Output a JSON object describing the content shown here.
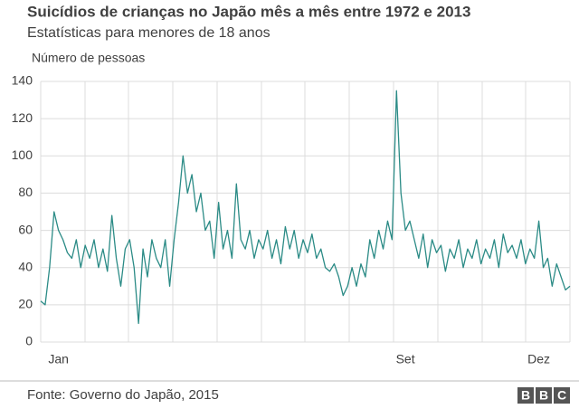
{
  "chart_data": {
    "type": "line",
    "title": "Suicídios de crianças no Japão mês a mês entre 1972 e 2013",
    "subtitle": "Estatísticas para menores de 18 anos",
    "y_label": "Número de pessoas",
    "source": "Fonte: Governo do Japão, 2015",
    "logo": [
      "B",
      "B",
      "C"
    ],
    "categories": [
      null,
      null,
      null,
      null,
      "Jan",
      null,
      null,
      null,
      null,
      null,
      null,
      null,
      null,
      null,
      null,
      null,
      null,
      null,
      null,
      null,
      null,
      null,
      null,
      null,
      null,
      null,
      null,
      null,
      null,
      null,
      null,
      null,
      null,
      null,
      null,
      null,
      null,
      null,
      null,
      null,
      null,
      null,
      null,
      null,
      null,
      null,
      null,
      null,
      null,
      null,
      null,
      null,
      null,
      null,
      null,
      null,
      null,
      null,
      null,
      null,
      null,
      null,
      null,
      null,
      null,
      null,
      null,
      null,
      null,
      null,
      null,
      null,
      null,
      null,
      null,
      null,
      null,
      null,
      null,
      null,
      null,
      null,
      "Set",
      null,
      null,
      null,
      null,
      null,
      null,
      null,
      null,
      null,
      null,
      null,
      null,
      null,
      null,
      null,
      null,
      null,
      null,
      null,
      null,
      null,
      null,
      null,
      null,
      null,
      null,
      null,
      null,
      null,
      "Dez",
      null,
      null,
      null,
      null,
      null,
      null,
      null
    ],
    "series": [
      {
        "name": "Suicídios",
        "color": "#2b8b86",
        "values": [
          22,
          20,
          40,
          70,
          60,
          55,
          48,
          45,
          55,
          40,
          52,
          45,
          55,
          40,
          50,
          38,
          68,
          45,
          30,
          50,
          55,
          40,
          10,
          50,
          35,
          55,
          45,
          40,
          55,
          30,
          55,
          75,
          100,
          80,
          90,
          70,
          80,
          60,
          65,
          45,
          75,
          50,
          60,
          45,
          85,
          55,
          50,
          60,
          45,
          55,
          50,
          60,
          45,
          55,
          42,
          62,
          50,
          60,
          45,
          55,
          48,
          58,
          45,
          50,
          40,
          38,
          42,
          35,
          25,
          30,
          40,
          30,
          42,
          35,
          55,
          45,
          60,
          50,
          65,
          55,
          135,
          80,
          60,
          65,
          55,
          45,
          58,
          40,
          55,
          48,
          52,
          38,
          50,
          45,
          55,
          40,
          50,
          45,
          55,
          42,
          50,
          45,
          55,
          40,
          58,
          48,
          52,
          45,
          55,
          42,
          50,
          45,
          65,
          40,
          45,
          30,
          42,
          35,
          28,
          30
        ]
      }
    ],
    "ylim": [
      0,
      140
    ],
    "yticks": [
      0,
      20,
      40,
      60,
      80,
      100,
      120,
      140
    ],
    "grid": true
  }
}
